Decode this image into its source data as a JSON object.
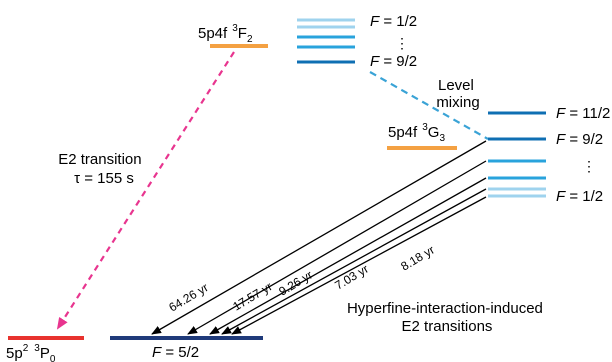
{
  "colors": {
    "level_upper": "#f4a142",
    "level_ground": "#e8322e",
    "level_final": "#1f3a7a",
    "sub_light": "#9fd3ee",
    "sub_mid": "#29a3dc",
    "sub_dark": "#0f6fb3",
    "e2_arrow": "#e8358f",
    "mixing": "#3aa3d6",
    "decay_arrow": "#000000"
  },
  "levels": {
    "f2": {
      "config": "5p4f",
      "term_sup": "3",
      "term": "F",
      "term_sub": "2"
    },
    "g3": {
      "config": "5p4f",
      "term_sup": "3",
      "term": "G",
      "term_sub": "3"
    },
    "p0": {
      "config": "5p",
      "config_sup": "2",
      "term_sup": "3",
      "term": "P",
      "term_sub": "0"
    },
    "final_F": {
      "var": "F",
      "eq": " = 5/2"
    }
  },
  "f2_hyperfine": {
    "top": {
      "var": "F",
      "eq": " = 1/2"
    },
    "ellipsis": "⋮",
    "bottom": {
      "var": "F",
      "eq": " = 9/2"
    }
  },
  "g3_hyperfine": {
    "l1": {
      "var": "F",
      "eq": " = 11/2"
    },
    "l2": {
      "var": "F",
      "eq": " = 9/2"
    },
    "ellipsis": "⋮",
    "l3": {
      "var": "F",
      "eq": " = 1/2"
    }
  },
  "level_mixing": {
    "line1": "Level",
    "line2": "mixing"
  },
  "e2_transition": {
    "line1": "E2 transition",
    "line2": "τ = 155 s"
  },
  "lifetimes": [
    "64.26 yr",
    "17.57 yr",
    "9.26 yr",
    "7.03 yr",
    "8.18 yr"
  ],
  "hyperfine_caption": {
    "line1": "Hyperfine-interaction-induced",
    "line2": "E2 transitions"
  }
}
